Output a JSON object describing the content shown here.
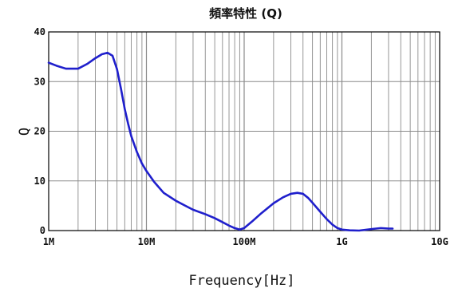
{
  "chart_data": {
    "type": "line",
    "title": "頻率特性 (Q)",
    "xlabel": "Frequency[Hz]",
    "ylabel": "Q",
    "x_scale": "log",
    "xlim": [
      1000000,
      10000000000
    ],
    "ylim": [
      0,
      40
    ],
    "x_ticks": [
      {
        "value": 1000000,
        "label": "1M"
      },
      {
        "value": 10000000,
        "label": "10M"
      },
      {
        "value": 100000000,
        "label": "100M"
      },
      {
        "value": 1000000000,
        "label": "1G"
      },
      {
        "value": 10000000000,
        "label": "10G"
      }
    ],
    "y_ticks": [
      {
        "value": 0,
        "label": "0"
      },
      {
        "value": 10,
        "label": "10"
      },
      {
        "value": 20,
        "label": "20"
      },
      {
        "value": 30,
        "label": "30"
      },
      {
        "value": 40,
        "label": "40"
      }
    ],
    "grid": true,
    "line_color": "#1f1fcc",
    "series": [
      {
        "x": [
          1000000,
          1200000,
          1500000,
          2000000,
          2500000,
          3000000,
          3500000,
          4000000,
          4500000,
          5000000,
          5500000,
          6000000,
          6500000,
          7000000,
          8000000,
          9000000,
          10000000,
          12000000,
          15000000,
          20000000,
          25000000,
          30000000,
          40000000,
          50000000,
          60000000,
          70000000,
          80000000,
          90000000,
          100000000,
          120000000,
          150000000,
          200000000,
          250000000,
          300000000,
          350000000,
          400000000,
          450000000,
          500000000,
          600000000,
          700000000,
          800000000,
          900000000,
          1000000000,
          1200000000,
          1500000000,
          2000000000,
          2500000000,
          3000000000,
          3300000000
        ],
        "y": [
          33.8,
          33.2,
          32.6,
          32.6,
          33.6,
          34.7,
          35.5,
          35.8,
          35.2,
          32.5,
          28.5,
          24.5,
          21.5,
          19.0,
          15.8,
          13.5,
          12.0,
          9.8,
          7.6,
          6.0,
          5.0,
          4.2,
          3.3,
          2.5,
          1.7,
          1.0,
          0.5,
          0.2,
          0.5,
          1.8,
          3.5,
          5.5,
          6.7,
          7.4,
          7.6,
          7.4,
          6.6,
          5.6,
          3.8,
          2.3,
          1.2,
          0.5,
          0.2,
          0.05,
          0.0,
          0.3,
          0.5,
          0.4,
          0.4
        ]
      }
    ]
  }
}
